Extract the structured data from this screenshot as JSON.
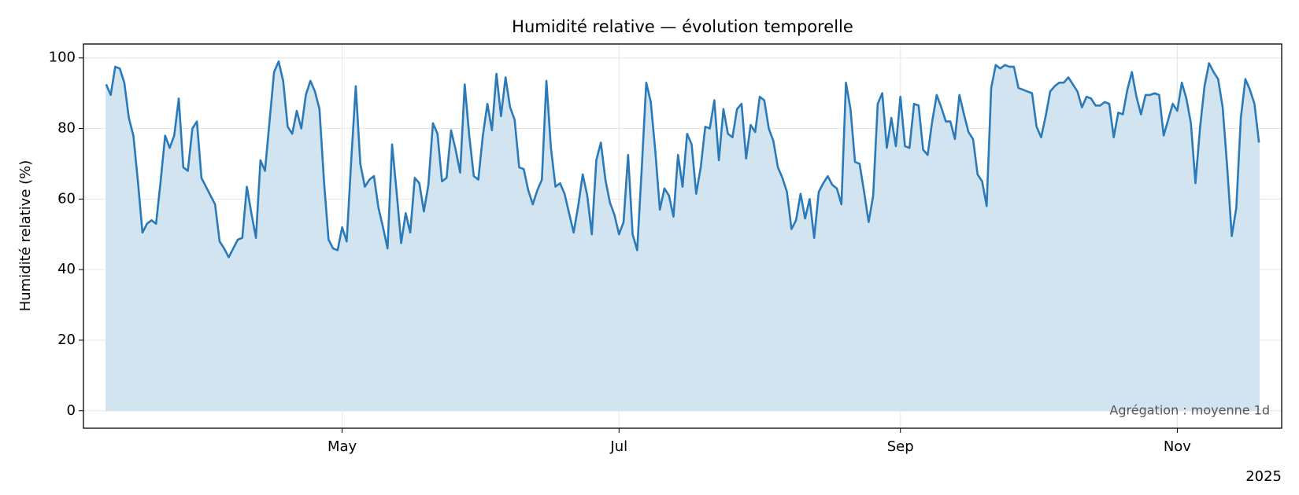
{
  "chart_data": {
    "type": "area",
    "title": "Humidité relative — évolution temporelle",
    "y_label": "Humidité relative (%)",
    "annotation": "Agrégation : moyenne 1d",
    "x_offset_label": "2025",
    "color": "#2a7ab9",
    "fill_color": "#d3e4f1",
    "grid": true,
    "xlim": [
      64,
      328
    ],
    "ylim": [
      -4.95,
      103.95
    ],
    "yticks": [
      0,
      20,
      40,
      60,
      80,
      100
    ],
    "xticks": [
      {
        "value": 121,
        "label": "May"
      },
      {
        "value": 182,
        "label": "Jul"
      },
      {
        "value": 244,
        "label": "Sep"
      },
      {
        "value": 305,
        "label": "Nov"
      }
    ],
    "x": [
      69,
      70,
      71,
      72,
      73,
      74,
      75,
      76,
      77,
      78,
      79,
      80,
      81,
      82,
      83,
      84,
      85,
      86,
      87,
      88,
      89,
      90,
      91,
      92,
      93,
      94,
      95,
      96,
      97,
      98,
      99,
      100,
      101,
      102,
      103,
      104,
      105,
      106,
      107,
      108,
      109,
      110,
      111,
      112,
      113,
      114,
      115,
      116,
      117,
      118,
      119,
      120,
      121,
      122,
      123,
      124,
      125,
      126,
      127,
      128,
      129,
      130,
      131,
      132,
      133,
      134,
      135,
      136,
      137,
      138,
      139,
      140,
      141,
      142,
      143,
      144,
      145,
      146,
      147,
      148,
      149,
      150,
      151,
      152,
      153,
      154,
      155,
      156,
      157,
      158,
      159,
      160,
      161,
      162,
      163,
      164,
      165,
      166,
      167,
      168,
      169,
      170,
      171,
      172,
      173,
      174,
      175,
      176,
      177,
      178,
      179,
      180,
      181,
      182,
      183,
      184,
      185,
      186,
      187,
      188,
      189,
      190,
      191,
      192,
      193,
      194,
      195,
      196,
      197,
      198,
      199,
      200,
      201,
      202,
      203,
      204,
      205,
      206,
      207,
      208,
      209,
      210,
      211,
      212,
      213,
      214,
      215,
      216,
      217,
      218,
      219,
      220,
      221,
      222,
      223,
      224,
      225,
      226,
      227,
      228,
      229,
      230,
      231,
      232,
      233,
      234,
      235,
      236,
      237,
      238,
      239,
      240,
      241,
      242,
      243,
      244,
      245,
      246,
      247,
      248,
      249,
      250,
      251,
      252,
      253,
      254,
      255,
      256,
      257,
      258,
      259,
      260,
      261,
      262,
      263,
      264,
      265,
      266,
      267,
      268,
      269,
      270,
      271,
      272,
      273,
      274,
      275,
      276,
      277,
      278,
      279,
      280,
      281,
      282,
      283,
      284,
      285,
      286,
      287,
      288,
      289,
      290,
      291,
      292,
      293,
      294,
      295,
      296,
      297,
      298,
      299,
      300,
      301,
      302,
      303,
      304,
      305,
      306,
      307,
      308,
      309,
      310,
      311,
      312,
      313,
      314,
      315,
      316,
      317,
      318,
      319,
      320,
      321,
      322,
      323
    ],
    "values": [
      92.5,
      89.5,
      97.5,
      97,
      93,
      83,
      78,
      65,
      50.5,
      53,
      54,
      53,
      65,
      78,
      74.5,
      78,
      88.5,
      69,
      68,
      80,
      82,
      66,
      63.5,
      61,
      58.5,
      48,
      46,
      43.5,
      46,
      48.5,
      49,
      63.5,
      56,
      49,
      71,
      68,
      82,
      96,
      99,
      93.5,
      80.5,
      78.5,
      85,
      80,
      89.5,
      93.5,
      90.5,
      85.5,
      65,
      48.5,
      46,
      45.5,
      52,
      48,
      71,
      92,
      70,
      63.5,
      65.5,
      66.5,
      57.5,
      52,
      46,
      75.5,
      62,
      47.5,
      56,
      50.5,
      66,
      64.5,
      56.5,
      64,
      81.5,
      78.5,
      65,
      66,
      79.5,
      74,
      67.5,
      92.5,
      78,
      66.5,
      65.5,
      78,
      87,
      79.5,
      95.5,
      83.5,
      94.5,
      86,
      82.5,
      69,
      68.5,
      62.5,
      58.5,
      62.5,
      65.5,
      93.5,
      74.5,
      63.5,
      64.5,
      61.5,
      56,
      50.5,
      58,
      67,
      61,
      50,
      71,
      76,
      65.5,
      59,
      55.5,
      50,
      53.5,
      72.5,
      50,
      45.5,
      68.5,
      93,
      87.5,
      73.5,
      57,
      63,
      61,
      55,
      72.5,
      63.5,
      78.5,
      75.5,
      61.5,
      69,
      80.5,
      80,
      88,
      71,
      85.5,
      78.5,
      77.5,
      85.5,
      87,
      71.5,
      81,
      79,
      89,
      88,
      80,
      76.5,
      69,
      66,
      62,
      51.5,
      54,
      61.5,
      54.5,
      60,
      49,
      62,
      64.5,
      66.5,
      64,
      63,
      58.5,
      93,
      85.5,
      70.5,
      70,
      62,
      53.5,
      61,
      87,
      90,
      74.5,
      83,
      75,
      89,
      75,
      74.5,
      87,
      86.5,
      74,
      72.5,
      82,
      89.5,
      86,
      82,
      82,
      77,
      89.5,
      84,
      79,
      77,
      67,
      65,
      58,
      91.5,
      98,
      97,
      98,
      97.5,
      97.5,
      91.5,
      91,
      90.5,
      90,
      80.5,
      77.5,
      83.5,
      90.5,
      92,
      93,
      93,
      94.5,
      92.5,
      90.5,
      86,
      89,
      88.5,
      86.5,
      86.5,
      87.5,
      87,
      77.5,
      84.5,
      84,
      91,
      96,
      89,
      84,
      89.5,
      89.5,
      90,
      89.5,
      78,
      82.5,
      87,
      85,
      93,
      88.5,
      81.5,
      64.5,
      80,
      92,
      98.5,
      96,
      94,
      86,
      69,
      49.5,
      57.5,
      83,
      94,
      91,
      87,
      76
    ]
  }
}
